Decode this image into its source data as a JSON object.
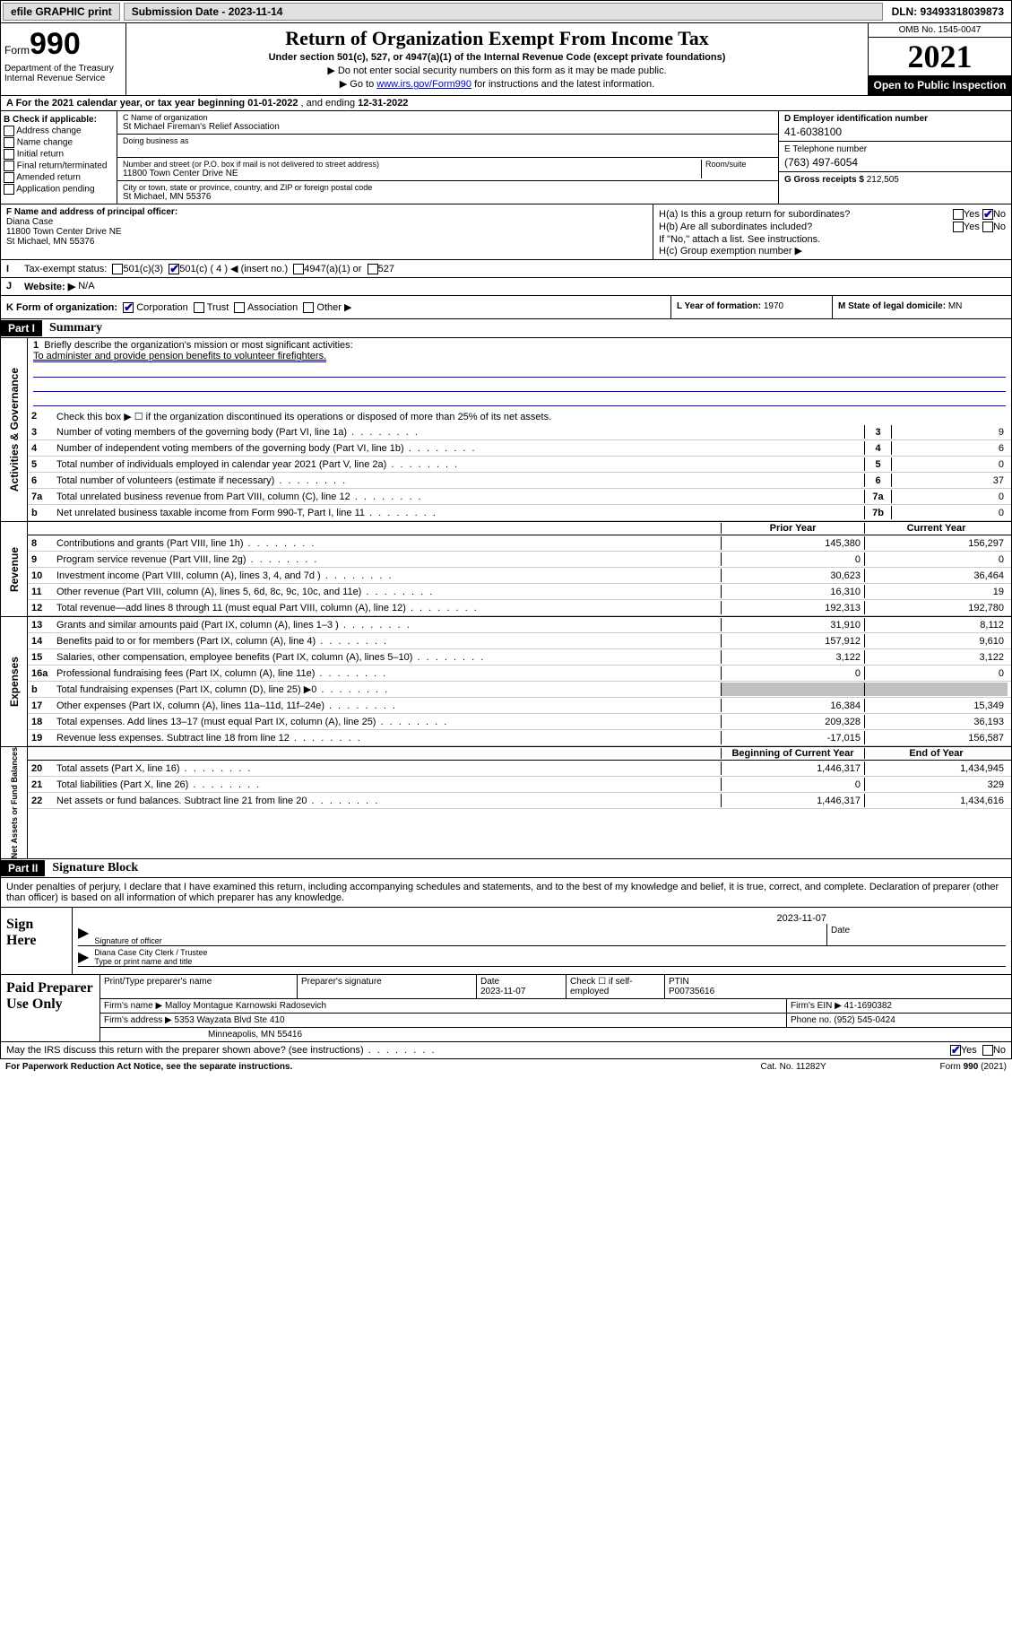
{
  "topbar": {
    "efile": "efile GRAPHIC print",
    "submission": "Submission Date - 2023-11-14",
    "dln": "DLN: 93493318039873"
  },
  "header": {
    "form_word": "Form",
    "form_num": "990",
    "dept": "Department of the Treasury\nInternal Revenue Service",
    "title": "Return of Organization Exempt From Income Tax",
    "sub1": "Under section 501(c), 527, or 4947(a)(1) of the Internal Revenue Code (except private foundations)",
    "sub2": "▶ Do not enter social security numbers on this form as it may be made public.",
    "sub3_pre": "▶ Go to ",
    "sub3_link": "www.irs.gov/Form990",
    "sub3_post": " for instructions and the latest information.",
    "omb": "OMB No. 1545-0047",
    "year": "2021",
    "inspect": "Open to Public Inspection"
  },
  "rowA": {
    "text_pre": "A For the 2021 calendar year, or tax year beginning ",
    "begin": "01-01-2022",
    "mid": " , and ending ",
    "end": "12-31-2022"
  },
  "B": {
    "hdr": "B Check if applicable:",
    "items": [
      "Address change",
      "Name change",
      "Initial return",
      "Final return/terminated",
      "Amended return",
      "Application pending"
    ]
  },
  "C": {
    "name_lbl": "C Name of organization",
    "name": "St Michael Fireman's Relief Association",
    "dba_lbl": "Doing business as",
    "street_lbl": "Number and street (or P.O. box if mail is not delivered to street address)",
    "room_lbl": "Room/suite",
    "street": "11800 Town Center Drive NE",
    "city_lbl": "City or town, state or province, country, and ZIP or foreign postal code",
    "city": "St Michael, MN  55376"
  },
  "D": {
    "lbl": "D Employer identification number",
    "val": "41-6038100"
  },
  "E": {
    "lbl": "E Telephone number",
    "val": "(763) 497-6054"
  },
  "G": {
    "lbl": "G Gross receipts $",
    "val": "212,505"
  },
  "F": {
    "lbl": "F Name and address of principal officer:",
    "name": "Diana Case",
    "addr1": "11800 Town Center Drive NE",
    "addr2": "St Michael, MN  55376"
  },
  "H": {
    "a": "H(a)  Is this a group return for subordinates?",
    "b": "H(b)  Are all subordinates included?",
    "note": "If \"No,\" attach a list. See instructions.",
    "c": "H(c)  Group exemption number ▶",
    "yes": "Yes",
    "no": "No"
  },
  "I": {
    "lbl": "I",
    "txt": "Tax-exempt status:",
    "opts": [
      "501(c)(3)",
      "501(c) ( 4 ) ◀ (insert no.)",
      "4947(a)(1) or",
      "527"
    ]
  },
  "J": {
    "lbl": "J",
    "txt": "Website: ▶",
    "val": "N/A"
  },
  "K": {
    "txt": "K Form of organization:",
    "opts": [
      "Corporation",
      "Trust",
      "Association",
      "Other ▶"
    ]
  },
  "L": {
    "txt": "L Year of formation: ",
    "val": "1970"
  },
  "M": {
    "txt": "M State of legal domicile: ",
    "val": "MN"
  },
  "part1": {
    "hdr": "Part I",
    "title": "Summary"
  },
  "gov": {
    "label": "Activities & Governance",
    "l1": "Briefly describe the organization's mission or most significant activities:",
    "l1v": "To administer and provide pension benefits to volunteer firefighters.",
    "l2": "Check this box ▶ ☐  if the organization discontinued its operations or disposed of more than 25% of its net assets.",
    "rows": [
      {
        "n": "3",
        "t": "Number of voting members of the governing body (Part VI, line 1a)",
        "box": "3",
        "v": "9"
      },
      {
        "n": "4",
        "t": "Number of independent voting members of the governing body (Part VI, line 1b)",
        "box": "4",
        "v": "6"
      },
      {
        "n": "5",
        "t": "Total number of individuals employed in calendar year 2021 (Part V, line 2a)",
        "box": "5",
        "v": "0"
      },
      {
        "n": "6",
        "t": "Total number of volunteers (estimate if necessary)",
        "box": "6",
        "v": "37"
      },
      {
        "n": "7a",
        "t": "Total unrelated business revenue from Part VIII, column (C), line 12",
        "box": "7a",
        "v": "0"
      },
      {
        "n": "b",
        "t": "Net unrelated business taxable income from Form 990-T, Part I, line 11",
        "box": "7b",
        "v": "0"
      }
    ]
  },
  "rev": {
    "label": "Revenue",
    "hdr1": "Prior Year",
    "hdr2": "Current Year",
    "rows": [
      {
        "n": "8",
        "t": "Contributions and grants (Part VIII, line 1h)",
        "c1": "145,380",
        "c2": "156,297"
      },
      {
        "n": "9",
        "t": "Program service revenue (Part VIII, line 2g)",
        "c1": "0",
        "c2": "0"
      },
      {
        "n": "10",
        "t": "Investment income (Part VIII, column (A), lines 3, 4, and 7d )",
        "c1": "30,623",
        "c2": "36,464"
      },
      {
        "n": "11",
        "t": "Other revenue (Part VIII, column (A), lines 5, 6d, 8c, 9c, 10c, and 11e)",
        "c1": "16,310",
        "c2": "19"
      },
      {
        "n": "12",
        "t": "Total revenue—add lines 8 through 11 (must equal Part VIII, column (A), line 12)",
        "c1": "192,313",
        "c2": "192,780"
      }
    ]
  },
  "exp": {
    "label": "Expenses",
    "rows": [
      {
        "n": "13",
        "t": "Grants and similar amounts paid (Part IX, column (A), lines 1–3 )",
        "c1": "31,910",
        "c2": "8,112"
      },
      {
        "n": "14",
        "t": "Benefits paid to or for members (Part IX, column (A), line 4)",
        "c1": "157,912",
        "c2": "9,610"
      },
      {
        "n": "15",
        "t": "Salaries, other compensation, employee benefits (Part IX, column (A), lines 5–10)",
        "c1": "3,122",
        "c2": "3,122"
      },
      {
        "n": "16a",
        "t": "Professional fundraising fees (Part IX, column (A), line 11e)",
        "c1": "0",
        "c2": "0"
      },
      {
        "n": "b",
        "t": "Total fundraising expenses (Part IX, column (D), line 25) ▶0",
        "c1": "",
        "c2": "",
        "grey": true
      },
      {
        "n": "17",
        "t": "Other expenses (Part IX, column (A), lines 11a–11d, 11f–24e)",
        "c1": "16,384",
        "c2": "15,349"
      },
      {
        "n": "18",
        "t": "Total expenses. Add lines 13–17 (must equal Part IX, column (A), line 25)",
        "c1": "209,328",
        "c2": "36,193"
      },
      {
        "n": "19",
        "t": "Revenue less expenses. Subtract line 18 from line 12",
        "c1": "-17,015",
        "c2": "156,587"
      }
    ]
  },
  "net": {
    "label": "Net Assets or Fund Balances",
    "hdr1": "Beginning of Current Year",
    "hdr2": "End of Year",
    "rows": [
      {
        "n": "20",
        "t": "Total assets (Part X, line 16)",
        "c1": "1,446,317",
        "c2": "1,434,945"
      },
      {
        "n": "21",
        "t": "Total liabilities (Part X, line 26)",
        "c1": "0",
        "c2": "329"
      },
      {
        "n": "22",
        "t": "Net assets or fund balances. Subtract line 21 from line 20",
        "c1": "1,446,317",
        "c2": "1,434,616"
      }
    ]
  },
  "part2": {
    "hdr": "Part II",
    "title": "Signature Block"
  },
  "perjury": "Under penalties of perjury, I declare that I have examined this return, including accompanying schedules and statements, and to the best of my knowledge and belief, it is true, correct, and complete. Declaration of preparer (other than officer) is based on all information of which preparer has any knowledge.",
  "sign": {
    "label": "Sign Here",
    "sig_lbl": "Signature of officer",
    "date_lbl": "Date",
    "date": "2023-11-07",
    "name": "Diana Case  City Clerk / Trustee",
    "name_lbl": "Type or print name and title"
  },
  "prep": {
    "label": "Paid Preparer Use Only",
    "r1": {
      "c1": "Print/Type preparer's name",
      "c2": "Preparer's signature",
      "c3": "Date",
      "c3v": "2023-11-07",
      "c4": "Check ☐ if self-employed",
      "c5": "PTIN",
      "c5v": "P00735616"
    },
    "r2": {
      "c1": "Firm's name      ▶",
      "c1v": "Malloy Montague Karnowski Radosevich",
      "c2": "Firm's EIN ▶",
      "c2v": "41-1690382"
    },
    "r3": {
      "c1": "Firm's address ▶",
      "c1v": "5353 Wayzata Blvd Ste 410",
      "c2": "Phone no.",
      "c2v": "(952) 545-0424"
    },
    "r3b": "Minneapolis, MN  55416"
  },
  "footer": {
    "q": "May the IRS discuss this return with the preparer shown above? (see instructions)",
    "yes": "Yes",
    "no": "No",
    "pra": "For Paperwork Reduction Act Notice, see the separate instructions.",
    "cat": "Cat. No. 11282Y",
    "form": "Form 990 (2021)"
  }
}
